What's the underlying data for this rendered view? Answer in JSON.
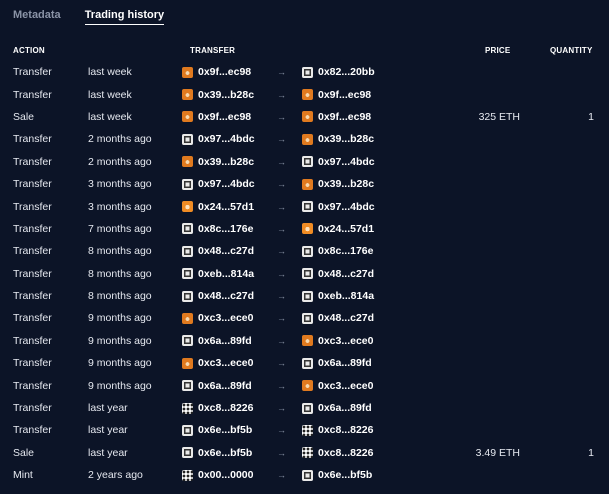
{
  "tabs": [
    {
      "label": "Metadata",
      "active": false
    },
    {
      "label": "Trading history",
      "active": true
    }
  ],
  "columns": {
    "action": "ACTION",
    "transfer": "TRANSFER",
    "price": "PRICE",
    "quantity": "QUANTITY"
  },
  "arrow": "→",
  "rows": [
    {
      "action": "Transfer",
      "time": "last week",
      "from": "0x9f...ec98",
      "from_icon": "fox",
      "to": "0x82...20bb",
      "to_icon": "mono",
      "price": "",
      "qty": ""
    },
    {
      "action": "Transfer",
      "time": "last week",
      "from": "0x39...b28c",
      "from_icon": "fox",
      "to": "0x9f...ec98",
      "to_icon": "fox",
      "price": "",
      "qty": ""
    },
    {
      "action": "Sale",
      "time": "last week",
      "from": "0x9f...ec98",
      "from_icon": "fox",
      "to": "0x9f...ec98",
      "to_icon": "fox",
      "price": "325 ETH",
      "qty": "1"
    },
    {
      "action": "Transfer",
      "time": "2 months ago",
      "from": "0x97...4bdc",
      "from_icon": "mono",
      "to": "0x39...b28c",
      "to_icon": "fox",
      "price": "",
      "qty": ""
    },
    {
      "action": "Transfer",
      "time": "2 months ago",
      "from": "0x39...b28c",
      "from_icon": "fox",
      "to": "0x97...4bdc",
      "to_icon": "mono",
      "price": "",
      "qty": ""
    },
    {
      "action": "Transfer",
      "time": "3 months ago",
      "from": "0x97...4bdc",
      "from_icon": "mono",
      "to": "0x39...b28c",
      "to_icon": "fox",
      "price": "",
      "qty": ""
    },
    {
      "action": "Transfer",
      "time": "3 months ago",
      "from": "0x24...57d1",
      "from_icon": "bull",
      "to": "0x97...4bdc",
      "to_icon": "mono",
      "price": "",
      "qty": ""
    },
    {
      "action": "Transfer",
      "time": "7 months ago",
      "from": "0x8c...176e",
      "from_icon": "mono",
      "to": "0x24...57d1",
      "to_icon": "bull",
      "price": "",
      "qty": ""
    },
    {
      "action": "Transfer",
      "time": "8 months ago",
      "from": "0x48...c27d",
      "from_icon": "mono",
      "to": "0x8c...176e",
      "to_icon": "mono",
      "price": "",
      "qty": ""
    },
    {
      "action": "Transfer",
      "time": "8 months ago",
      "from": "0xeb...814a",
      "from_icon": "mono",
      "to": "0x48...c27d",
      "to_icon": "mono",
      "price": "",
      "qty": ""
    },
    {
      "action": "Transfer",
      "time": "8 months ago",
      "from": "0x48...c27d",
      "from_icon": "mono",
      "to": "0xeb...814a",
      "to_icon": "mono",
      "price": "",
      "qty": ""
    },
    {
      "action": "Transfer",
      "time": "9 months ago",
      "from": "0xc3...ece0",
      "from_icon": "fox",
      "to": "0x48...c27d",
      "to_icon": "mono",
      "price": "",
      "qty": ""
    },
    {
      "action": "Transfer",
      "time": "9 months ago",
      "from": "0x6a...89fd",
      "from_icon": "mono",
      "to": "0xc3...ece0",
      "to_icon": "fox",
      "price": "",
      "qty": ""
    },
    {
      "action": "Transfer",
      "time": "9 months ago",
      "from": "0xc3...ece0",
      "from_icon": "fox",
      "to": "0x6a...89fd",
      "to_icon": "mono",
      "price": "",
      "qty": ""
    },
    {
      "action": "Transfer",
      "time": "9 months ago",
      "from": "0x6a...89fd",
      "from_icon": "mono",
      "to": "0xc3...ece0",
      "to_icon": "fox",
      "price": "",
      "qty": ""
    },
    {
      "action": "Transfer",
      "time": "last year",
      "from": "0xc8...8226",
      "from_icon": "grid",
      "to": "0x6a...89fd",
      "to_icon": "mono",
      "price": "",
      "qty": ""
    },
    {
      "action": "Transfer",
      "time": "last year",
      "from": "0x6e...bf5b",
      "from_icon": "mono",
      "to": "0xc8...8226",
      "to_icon": "grid",
      "price": "",
      "qty": ""
    },
    {
      "action": "Sale",
      "time": "last year",
      "from": "0x6e...bf5b",
      "from_icon": "mono",
      "to": "0xc8...8226",
      "to_icon": "grid",
      "price": "3.49 ETH",
      "qty": "1"
    },
    {
      "action": "Mint",
      "time": "2 years ago",
      "from": "0x00...0000",
      "from_icon": "grid",
      "to": "0x6e...bf5b",
      "to_icon": "mono",
      "price": "",
      "qty": ""
    }
  ]
}
